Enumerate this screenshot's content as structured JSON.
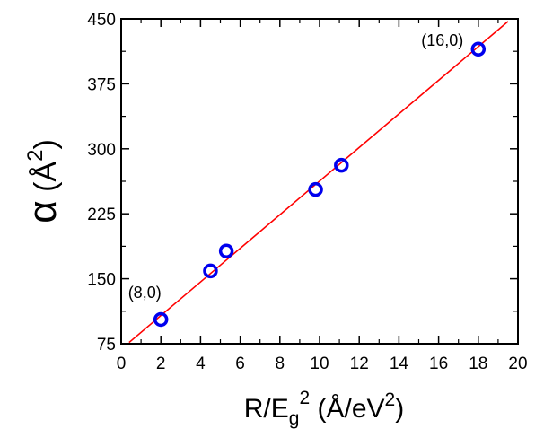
{
  "chart_data": {
    "type": "scatter",
    "xlabel": {
      "base": "R/E",
      "sub": "g",
      "sup": "2",
      "units_open": " (Å/eV",
      "units_sup": "2",
      "units_close": ")"
    },
    "ylabel": {
      "symbol": "α",
      "units_open": " (Å",
      "units_sup": "2",
      "units_close": ")"
    },
    "xlim": [
      0,
      20
    ],
    "ylim": [
      75,
      450
    ],
    "xticks": [
      "0",
      "2",
      "4",
      "6",
      "8",
      "10",
      "12",
      "14",
      "16",
      "18",
      "20"
    ],
    "yticks": [
      "75",
      "150",
      "225",
      "300",
      "375",
      "450"
    ],
    "grid": false,
    "points": [
      {
        "x": 2.0,
        "y": 103
      },
      {
        "x": 4.5,
        "y": 159
      },
      {
        "x": 5.3,
        "y": 182
      },
      {
        "x": 9.8,
        "y": 253
      },
      {
        "x": 11.1,
        "y": 281
      },
      {
        "x": 18.0,
        "y": 415
      }
    ],
    "fit_line": {
      "x": [
        0.4,
        19.5
      ],
      "y": [
        76.5,
        447
      ]
    },
    "annotations": [
      {
        "text": "(8,0)",
        "x": 2.0,
        "y": 103
      },
      {
        "text": "(16,0)",
        "x": 18.0,
        "y": 415
      }
    ],
    "colors": {
      "points": "#0000ee",
      "fit_line": "#ff0000",
      "axes": "#000000"
    }
  }
}
